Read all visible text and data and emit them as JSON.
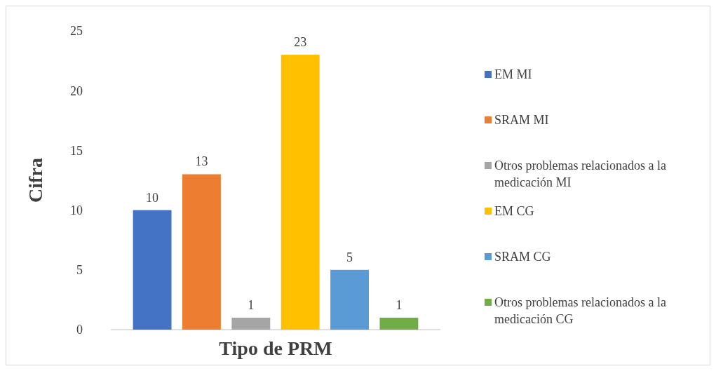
{
  "chart_data": {
    "type": "bar",
    "xlabel": "Tipo de PRM",
    "ylabel": "Cifra",
    "categories": [
      null
    ],
    "series": [
      {
        "name": "EM MI",
        "color": "#4472c4",
        "values": [
          10
        ]
      },
      {
        "name": "SRAM MI",
        "color": "#ed7d31",
        "values": [
          13
        ]
      },
      {
        "name": "Otros problemas relacionados a la medicación MI",
        "color": "#a5a5a5",
        "values": [
          1
        ]
      },
      {
        "name": "EM CG",
        "color": "#ffc000",
        "values": [
          23
        ]
      },
      {
        "name": "SRAM CG",
        "color": "#5b9bd5",
        "values": [
          5
        ]
      },
      {
        "name": "Otros problemas relacionados a la medicación CG",
        "color": "#70ad47",
        "values": [
          1
        ]
      }
    ],
    "ylim": [
      0,
      25
    ],
    "yticks": [
      0,
      5,
      10,
      15,
      20,
      25
    ],
    "grid": false,
    "legend": "right",
    "data_labels": true
  }
}
